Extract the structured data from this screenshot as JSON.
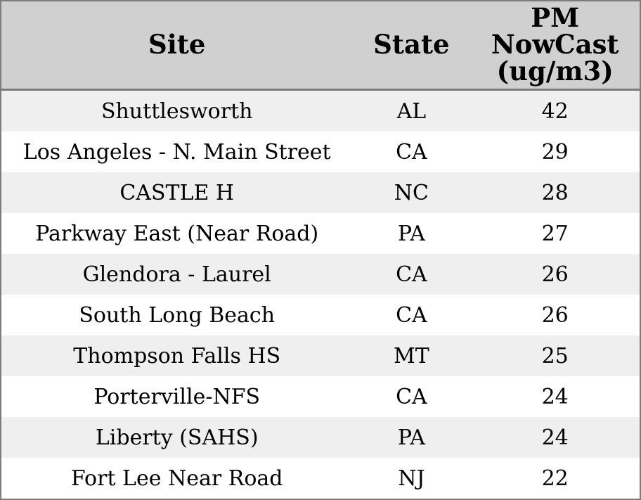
{
  "colors": {
    "outer_border": "#7c7c7c",
    "header_bg": "#d0d0d0",
    "row_odd_bg": "#efefef",
    "row_even_bg": "#ffffff",
    "text": "#000000"
  },
  "table": {
    "header": {
      "site_label": "Site",
      "state_label": "State",
      "value_label": "PM\nNowCast\n(ug/m3)"
    }
  },
  "chart_data": {
    "type": "table",
    "title": "",
    "columns": [
      "Site",
      "State",
      "PM NowCast (ug/m3)"
    ],
    "rows": [
      [
        "Shuttlesworth",
        "AL",
        42
      ],
      [
        "Los Angeles - N. Main Street",
        "CA",
        29
      ],
      [
        "CASTLE H",
        "NC",
        28
      ],
      [
        "Parkway East (Near Road)",
        "PA",
        27
      ],
      [
        "Glendora - Laurel",
        "CA",
        26
      ],
      [
        "South Long Beach",
        "CA",
        26
      ],
      [
        "Thompson Falls HS",
        "MT",
        25
      ],
      [
        "Porterville-NFS",
        "CA",
        24
      ],
      [
        "Liberty (SAHS)",
        "PA",
        24
      ],
      [
        "Fort Lee Near Road",
        "NJ",
        22
      ]
    ],
    "layout": {
      "header_fill": "#d0d0d0",
      "row_stripe_fill": "#efefef",
      "text_align": "center",
      "sorted_by": "PM NowCast (ug/m3) descending"
    }
  }
}
